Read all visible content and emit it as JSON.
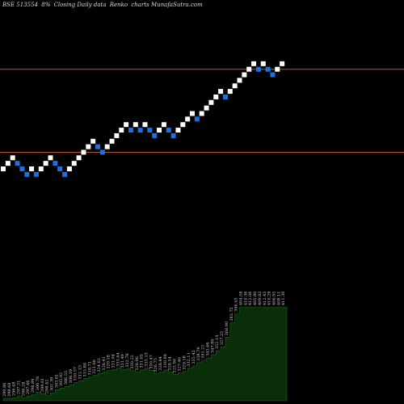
{
  "header": {
    "symbol": "BSE 513554",
    "share": "8%",
    "mode": "Closing Daily data",
    "type": "Renko",
    "site": "charts MunafaSutra.com"
  },
  "colors": {
    "background": "#000000",
    "up_brick": "#ffffff",
    "down_brick": "#1e6fe0",
    "line": "#b4542a",
    "volume_fill": "#0a2e0a",
    "volume_stroke": "#1d6a1d"
  },
  "chart_data": {
    "type": "renko",
    "bricks": [
      {
        "level": 0,
        "dir": "up"
      },
      {
        "level": 1,
        "dir": "up"
      },
      {
        "level": 2,
        "dir": "up"
      },
      {
        "level": 1,
        "dir": "down"
      },
      {
        "level": 0,
        "dir": "down"
      },
      {
        "level": -1,
        "dir": "down"
      },
      {
        "level": 0,
        "dir": "up"
      },
      {
        "level": -1,
        "dir": "down"
      },
      {
        "level": 0,
        "dir": "up"
      },
      {
        "level": 1,
        "dir": "up"
      },
      {
        "level": 2,
        "dir": "up"
      },
      {
        "level": 1,
        "dir": "down"
      },
      {
        "level": 0,
        "dir": "down"
      },
      {
        "level": -1,
        "dir": "down"
      },
      {
        "level": 0,
        "dir": "up"
      },
      {
        "level": 1,
        "dir": "up"
      },
      {
        "level": 2,
        "dir": "up"
      },
      {
        "level": 3,
        "dir": "up"
      },
      {
        "level": 4,
        "dir": "up"
      },
      {
        "level": 5,
        "dir": "up"
      },
      {
        "level": 4,
        "dir": "down"
      },
      {
        "level": 3,
        "dir": "down"
      },
      {
        "level": 4,
        "dir": "up"
      },
      {
        "level": 5,
        "dir": "up"
      },
      {
        "level": 6,
        "dir": "up"
      },
      {
        "level": 7,
        "dir": "up"
      },
      {
        "level": 8,
        "dir": "up"
      },
      {
        "level": 7,
        "dir": "down"
      },
      {
        "level": 8,
        "dir": "up"
      },
      {
        "level": 7,
        "dir": "down"
      },
      {
        "level": 8,
        "dir": "up"
      },
      {
        "level": 7,
        "dir": "down"
      },
      {
        "level": 6,
        "dir": "down"
      },
      {
        "level": 7,
        "dir": "up"
      },
      {
        "level": 8,
        "dir": "up"
      },
      {
        "level": 7,
        "dir": "down"
      },
      {
        "level": 6,
        "dir": "down"
      },
      {
        "level": 7,
        "dir": "up"
      },
      {
        "level": 8,
        "dir": "up"
      },
      {
        "level": 9,
        "dir": "up"
      },
      {
        "level": 10,
        "dir": "up"
      },
      {
        "level": 9,
        "dir": "down"
      },
      {
        "level": 10,
        "dir": "up"
      },
      {
        "level": 11,
        "dir": "up"
      },
      {
        "level": 12,
        "dir": "up"
      },
      {
        "level": 13,
        "dir": "up"
      },
      {
        "level": 14,
        "dir": "up"
      },
      {
        "level": 13,
        "dir": "down"
      },
      {
        "level": 14,
        "dir": "up"
      },
      {
        "level": 15,
        "dir": "up"
      },
      {
        "level": 16,
        "dir": "up"
      },
      {
        "level": 17,
        "dir": "up"
      },
      {
        "level": 18,
        "dir": "up"
      },
      {
        "level": 19,
        "dir": "up"
      },
      {
        "level": 18,
        "dir": "down"
      },
      {
        "level": 19,
        "dir": "up"
      },
      {
        "level": 18,
        "dir": "down"
      },
      {
        "level": 17,
        "dir": "down"
      },
      {
        "level": 18,
        "dir": "up"
      },
      {
        "level": 19,
        "dir": "up"
      }
    ],
    "hlines": [
      18,
      3
    ],
    "volume_labels": [
      "299.86",
      "298.68",
      "296.48",
      "297.31",
      "296.28",
      "297.46",
      "298.89",
      "300.76",
      "299.61",
      "298.42",
      "301.39",
      "303.81",
      "305.02",
      "306.55",
      "308.19",
      "310.57",
      "312.15",
      "315.88",
      "318.71",
      "321.66",
      "324.02",
      "326.41",
      "329.18",
      "331.04",
      "333.64",
      "331.49",
      "332.78",
      "330.22",
      "328.96",
      "331.05",
      "333.13",
      "330.47",
      "326.75",
      "328.84",
      "330.69",
      "328.54",
      "325.90",
      "327.46",
      "329.18",
      "332.11",
      "335.42",
      "338.76",
      "341.21",
      "343.66",
      "347.80",
      "352.14",
      "357.25",
      "368.90",
      "383.75",
      "396.43",
      "404.58",
      "410.36",
      "412.06",
      "405.80",
      "409.83",
      "412.43",
      "410.29",
      "406.95",
      "408.11",
      "411.30"
    ],
    "volume_values": [
      3,
      3,
      4,
      6,
      4,
      6,
      8,
      11,
      9,
      7,
      10,
      14,
      16,
      18,
      20,
      23,
      25,
      28,
      30,
      32,
      34,
      36,
      38,
      39,
      41,
      39,
      40,
      38,
      36,
      39,
      41,
      38,
      34,
      36,
      39,
      36,
      33,
      35,
      37,
      41,
      44,
      48,
      51,
      54,
      58,
      63,
      68,
      80,
      98,
      110,
      118,
      118,
      118,
      118,
      118,
      118,
      118,
      118,
      118,
      118
    ]
  }
}
